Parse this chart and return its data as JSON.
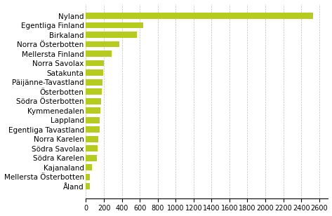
{
  "categories": [
    "Åland",
    "Mellersta Österbotten",
    "Kajanaland",
    "Södra Karelen",
    "Södra Savolax",
    "Norra Karelen",
    "Egentliga Tavastland",
    "Lappland",
    "Kymmenedalen",
    "Södra Österbotten",
    "Österbotten",
    "Päijänne-Tavastland",
    "Satakunta",
    "Norra Savolax",
    "Mellersta Finland",
    "Norra Österbotten",
    "Birkaland",
    "Egentliga Finland",
    "Nyland"
  ],
  "values": [
    42,
    45,
    65,
    120,
    130,
    135,
    150,
    155,
    160,
    170,
    180,
    185,
    195,
    200,
    285,
    370,
    570,
    635,
    2530
  ],
  "bar_color": "#b5cc1f",
  "background_color": "#ffffff",
  "grid_color": "#c0c0c0",
  "xlim": [
    0,
    2700
  ],
  "xticks": [
    0,
    200,
    400,
    600,
    800,
    1000,
    1200,
    1400,
    1600,
    1800,
    2000,
    2200,
    2400,
    2600
  ],
  "tick_fontsize": 7,
  "label_fontsize": 7.5
}
